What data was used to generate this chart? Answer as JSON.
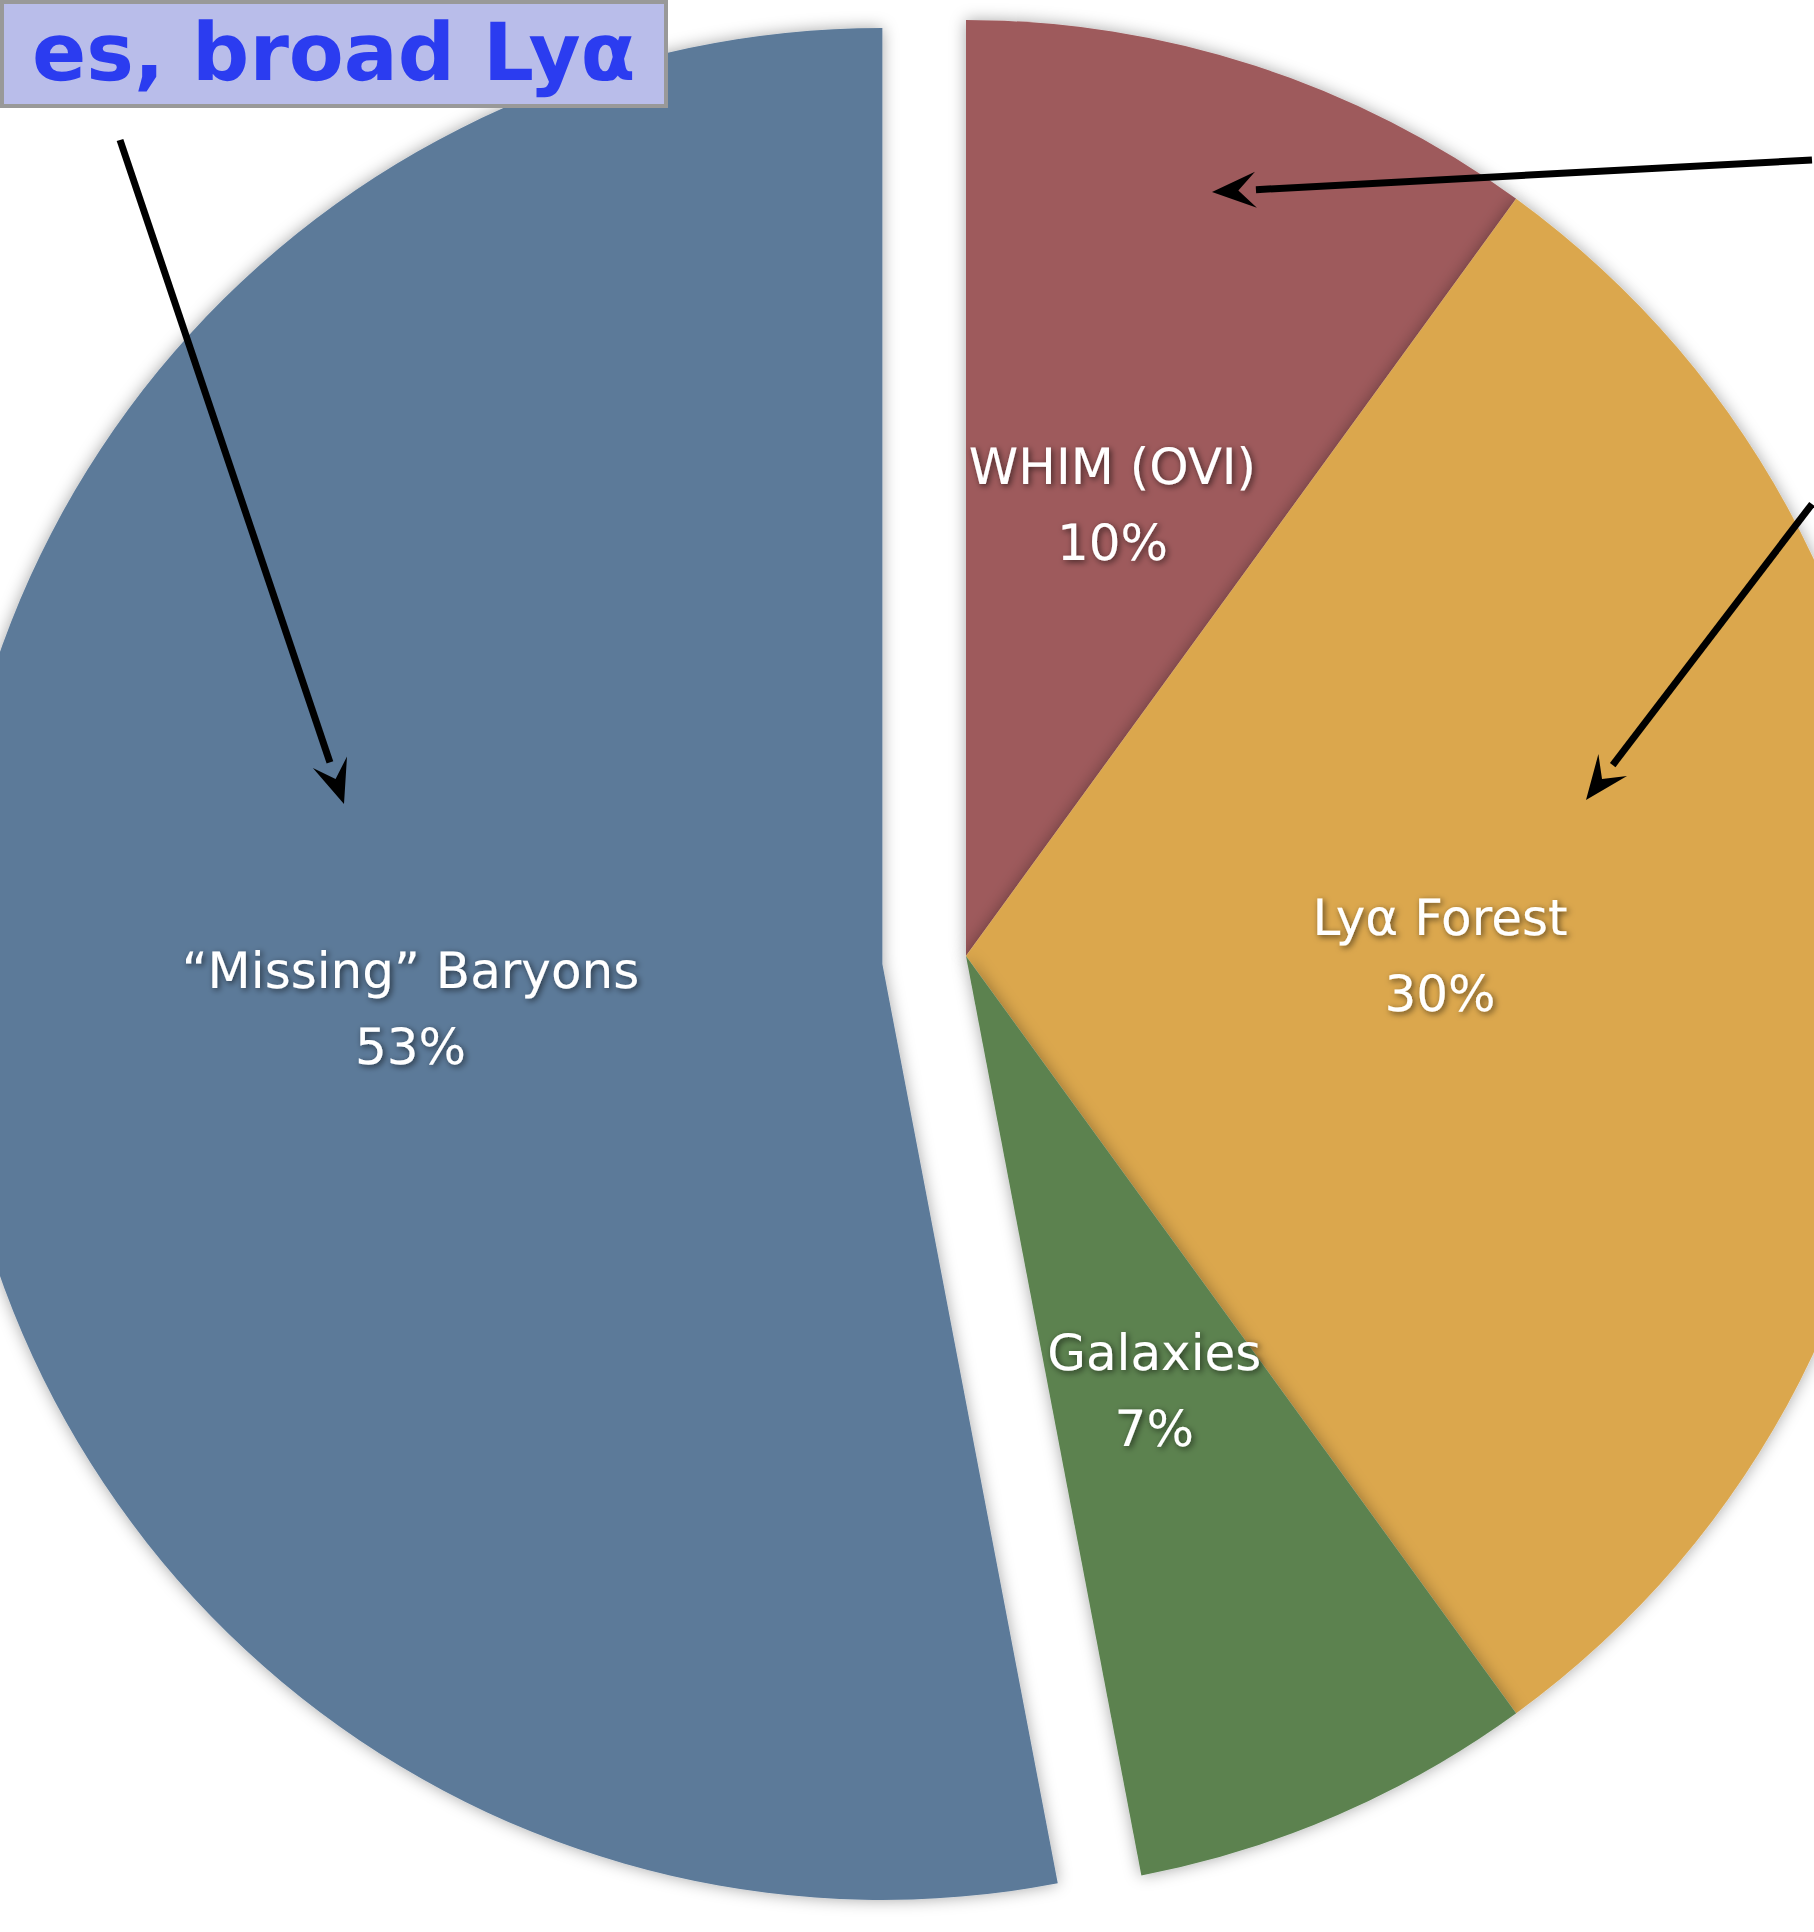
{
  "chart_data": {
    "type": "pie",
    "categories": [
      "WHIM (OVI)",
      "Lyα Forest",
      "Galaxies",
      "“Missing” Baryons"
    ],
    "values": [
      10,
      30,
      7,
      53
    ],
    "value_labels": [
      "10%",
      "30%",
      "7%",
      "53%"
    ],
    "colors": [
      "#9e5a5c",
      "#dba74e",
      "#5b8250",
      "#5c7a99"
    ],
    "annotations": [
      "es, broad Lyα"
    ]
  }
}
